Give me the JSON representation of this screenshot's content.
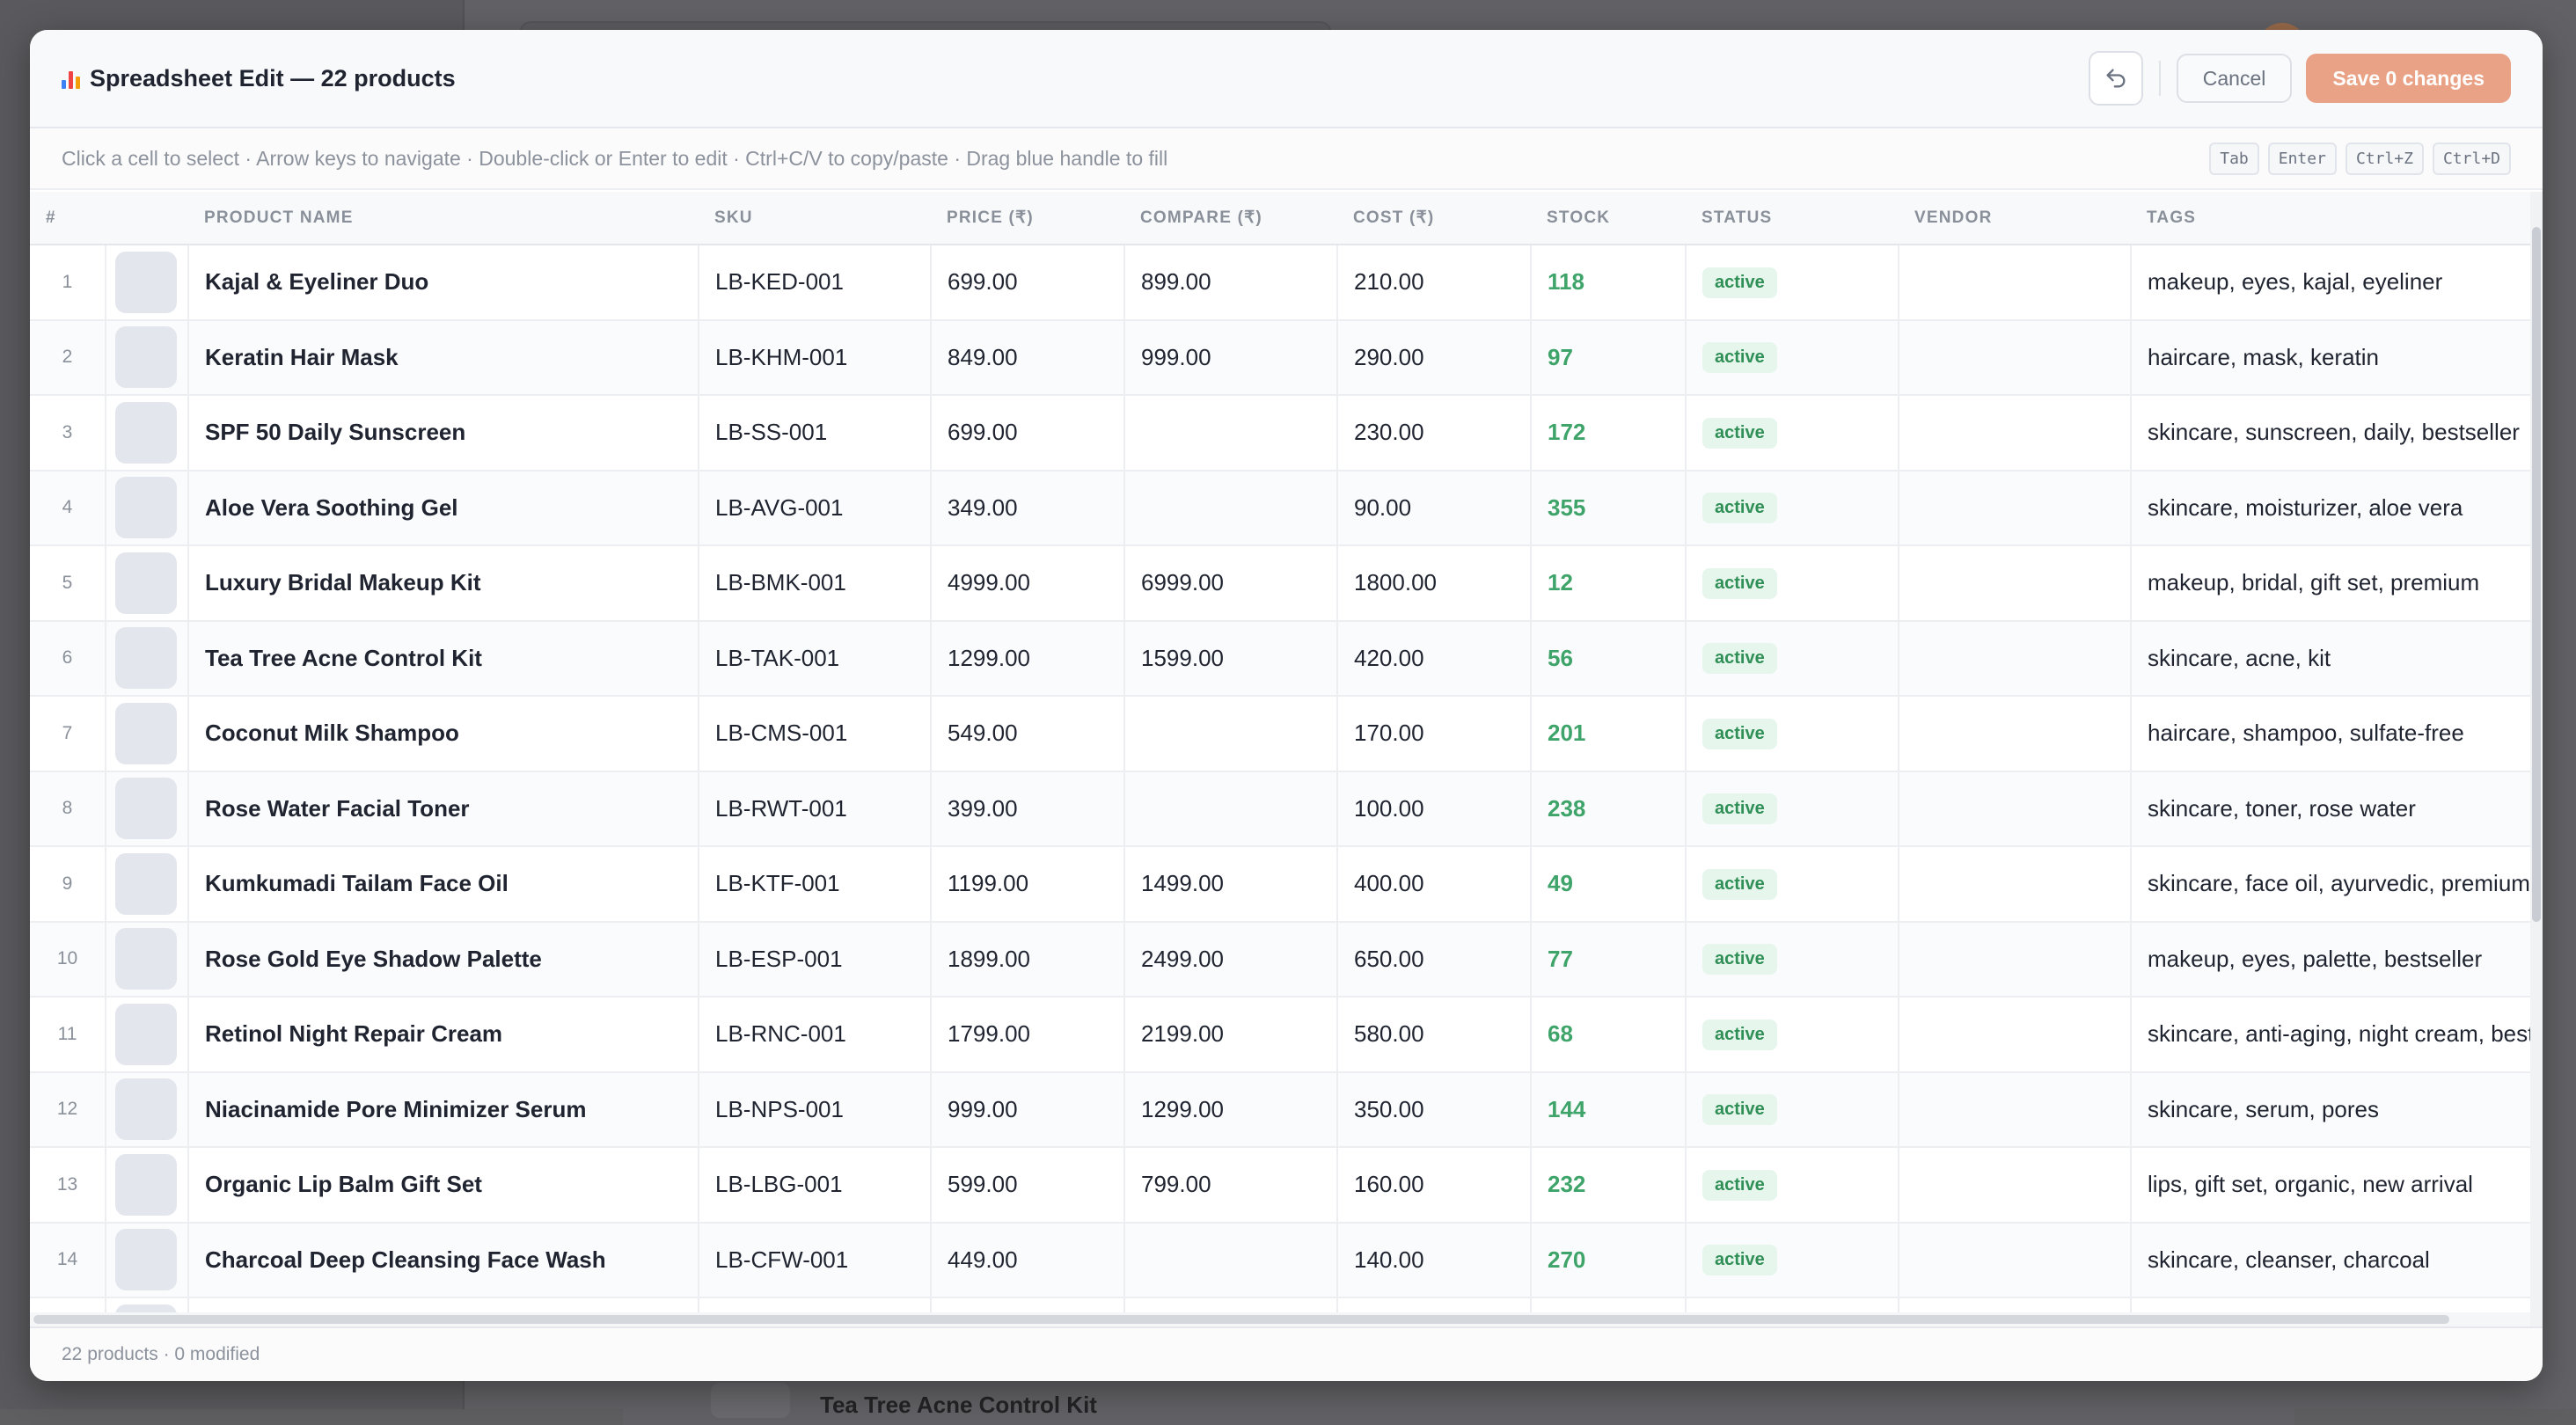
{
  "background": {
    "behind_row_text": "Tea Tree Acne Control Kit"
  },
  "modal": {
    "title": "Spreadsheet Edit — 22 products",
    "title_icon": "bar-chart-icon",
    "undo_icon": "undo-icon",
    "cancel_label": "Cancel",
    "save_label": "Save 0 changes",
    "hint": "Click a cell to select · Arrow keys to navigate · Double-click or Enter to edit · Ctrl+C/V to copy/paste · Drag blue handle to fill",
    "shortcuts": [
      "Tab",
      "Enter",
      "Ctrl+Z",
      "Ctrl+D"
    ],
    "footer": "22 products · 0 modified",
    "colors": {
      "accent": "#e9a285",
      "stock_green": "#3fa46a",
      "status_badge_bg": "#e6f6ec",
      "status_badge_text": "#2f8f56"
    }
  },
  "columns": {
    "num": "#",
    "name": "PRODUCT NAME",
    "sku": "SKU",
    "price": "PRICE (₹)",
    "compare": "COMPARE (₹)",
    "cost": "COST (₹)",
    "stock": "STOCK",
    "status": "STATUS",
    "vendor": "VENDOR",
    "tags": "TAGS"
  },
  "rows": [
    {
      "num": "1",
      "name": "Kajal & Eyeliner Duo",
      "sku": "LB-KED-001",
      "price": "699.00",
      "compare": "899.00",
      "cost": "210.00",
      "stock": "118",
      "status": "active",
      "vendor": "",
      "tags": "makeup, eyes, kajal, eyeliner"
    },
    {
      "num": "2",
      "name": "Keratin Hair Mask",
      "sku": "LB-KHM-001",
      "price": "849.00",
      "compare": "999.00",
      "cost": "290.00",
      "stock": "97",
      "status": "active",
      "vendor": "",
      "tags": "haircare, mask, keratin"
    },
    {
      "num": "3",
      "name": "SPF 50 Daily Sunscreen",
      "sku": "LB-SS-001",
      "price": "699.00",
      "compare": "",
      "cost": "230.00",
      "stock": "172",
      "status": "active",
      "vendor": "",
      "tags": "skincare, sunscreen, daily, bestseller"
    },
    {
      "num": "4",
      "name": "Aloe Vera Soothing Gel",
      "sku": "LB-AVG-001",
      "price": "349.00",
      "compare": "",
      "cost": "90.00",
      "stock": "355",
      "status": "active",
      "vendor": "",
      "tags": "skincare, moisturizer, aloe vera"
    },
    {
      "num": "5",
      "name": "Luxury Bridal Makeup Kit",
      "sku": "LB-BMK-001",
      "price": "4999.00",
      "compare": "6999.00",
      "cost": "1800.00",
      "stock": "12",
      "status": "active",
      "vendor": "",
      "tags": "makeup, bridal, gift set, premium"
    },
    {
      "num": "6",
      "name": "Tea Tree Acne Control Kit",
      "sku": "LB-TAK-001",
      "price": "1299.00",
      "compare": "1599.00",
      "cost": "420.00",
      "stock": "56",
      "status": "active",
      "vendor": "",
      "tags": "skincare, acne, kit"
    },
    {
      "num": "7",
      "name": "Coconut Milk Shampoo",
      "sku": "LB-CMS-001",
      "price": "549.00",
      "compare": "",
      "cost": "170.00",
      "stock": "201",
      "status": "active",
      "vendor": "",
      "tags": "haircare, shampoo, sulfate-free"
    },
    {
      "num": "8",
      "name": "Rose Water Facial Toner",
      "sku": "LB-RWT-001",
      "price": "399.00",
      "compare": "",
      "cost": "100.00",
      "stock": "238",
      "status": "active",
      "vendor": "",
      "tags": "skincare, toner, rose water"
    },
    {
      "num": "9",
      "name": "Kumkumadi Tailam Face Oil",
      "sku": "LB-KTF-001",
      "price": "1199.00",
      "compare": "1499.00",
      "cost": "400.00",
      "stock": "49",
      "status": "active",
      "vendor": "",
      "tags": "skincare, face oil, ayurvedic, premium"
    },
    {
      "num": "10",
      "name": "Rose Gold Eye Shadow Palette",
      "sku": "LB-ESP-001",
      "price": "1899.00",
      "compare": "2499.00",
      "cost": "650.00",
      "stock": "77",
      "status": "active",
      "vendor": "",
      "tags": "makeup, eyes, palette, bestseller"
    },
    {
      "num": "11",
      "name": "Retinol Night Repair Cream",
      "sku": "LB-RNC-001",
      "price": "1799.00",
      "compare": "2199.00",
      "cost": "580.00",
      "stock": "68",
      "status": "active",
      "vendor": "",
      "tags": "skincare, anti-aging, night cream, bestseller"
    },
    {
      "num": "12",
      "name": "Niacinamide Pore Minimizer Serum",
      "sku": "LB-NPS-001",
      "price": "999.00",
      "compare": "1299.00",
      "cost": "350.00",
      "stock": "144",
      "status": "active",
      "vendor": "",
      "tags": "skincare, serum, pores"
    },
    {
      "num": "13",
      "name": "Organic Lip Balm Gift Set",
      "sku": "LB-LBG-001",
      "price": "599.00",
      "compare": "799.00",
      "cost": "160.00",
      "stock": "232",
      "status": "active",
      "vendor": "",
      "tags": "lips, gift set, organic, new arrival"
    },
    {
      "num": "14",
      "name": "Charcoal Deep Cleansing Face Wash",
      "sku": "LB-CFW-001",
      "price": "449.00",
      "compare": "",
      "cost": "140.00",
      "stock": "270",
      "status": "active",
      "vendor": "",
      "tags": "skincare, cleanser, charcoal"
    },
    {
      "num": "",
      "name": "",
      "sku": "",
      "price": "",
      "compare": "",
      "cost": "",
      "stock": "",
      "status": "",
      "vendor": "",
      "tags": ""
    }
  ]
}
